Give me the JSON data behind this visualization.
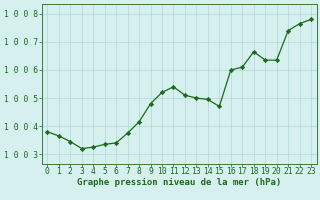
{
  "x": [
    0,
    1,
    2,
    3,
    4,
    5,
    6,
    7,
    8,
    9,
    10,
    11,
    12,
    13,
    14,
    15,
    16,
    17,
    18,
    19,
    20,
    21,
    22,
    23
  ],
  "y": [
    1003.8,
    1003.65,
    1003.45,
    1003.2,
    1003.25,
    1003.35,
    1003.4,
    1003.75,
    1004.15,
    1004.8,
    1005.2,
    1005.4,
    1005.1,
    1005.0,
    1004.95,
    1004.7,
    1006.0,
    1006.1,
    1006.65,
    1006.35,
    1006.35,
    1007.4,
    1007.65,
    1007.8
  ],
  "line_color": "#1a6b1a",
  "marker": "D",
  "marker_size": 2.2,
  "bg_color": "#d6f0ef",
  "grid_color": "#b0d8d4",
  "border_color": "#3a7a3a",
  "xlabel": "Graphe pression niveau de la mer (hPa)",
  "xlabel_color": "#1a6b1a",
  "xlabel_fontsize": 6.5,
  "tick_color": "#1a6b1a",
  "tick_fontsize": 5.8,
  "ylim": [
    1002.65,
    1008.35
  ],
  "yticks": [
    1003,
    1004,
    1005,
    1006,
    1007,
    1008
  ],
  "xlim": [
    -0.5,
    23.5
  ],
  "xticks": [
    0,
    1,
    2,
    3,
    4,
    5,
    6,
    7,
    8,
    9,
    10,
    11,
    12,
    13,
    14,
    15,
    16,
    17,
    18,
    19,
    20,
    21,
    22,
    23
  ]
}
